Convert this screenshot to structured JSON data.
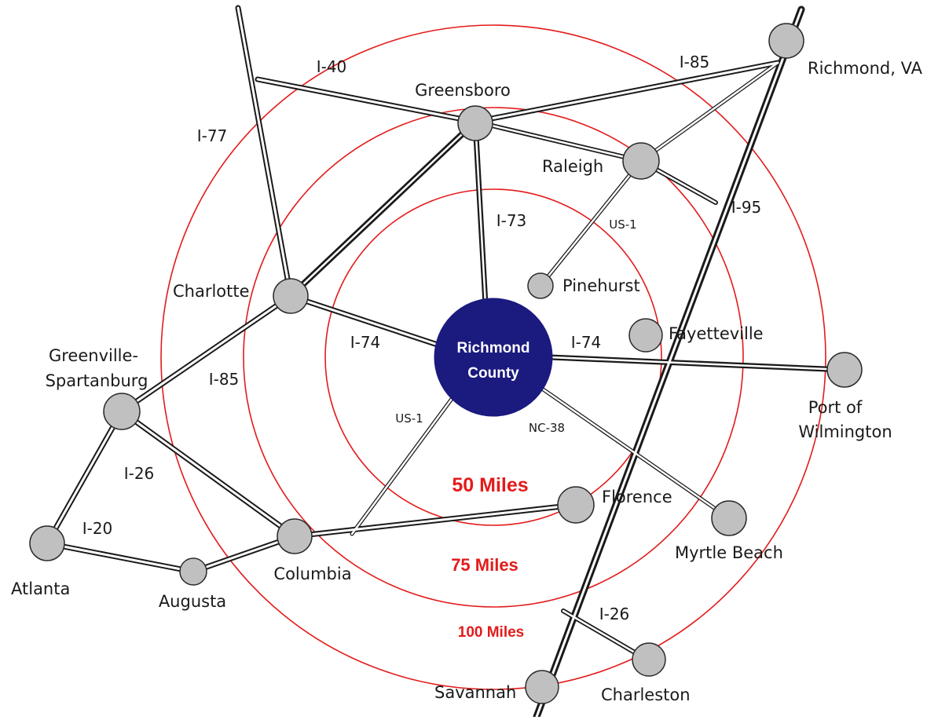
{
  "map": {
    "center": {
      "line1": "Richmond",
      "line2": "County",
      "color": "#1b1a7e"
    },
    "rings": [
      {
        "label": "50 Miles"
      },
      {
        "label": "75 Miles"
      },
      {
        "label": "100 Miles"
      }
    ],
    "ring_color": "#e31b1b",
    "cities": [
      {
        "id": "greensboro",
        "label": "Greensboro"
      },
      {
        "id": "richmond-va",
        "label": "Richmond, VA"
      },
      {
        "id": "raleigh",
        "label": "Raleigh"
      },
      {
        "id": "pinehurst",
        "label": "Pinehurst"
      },
      {
        "id": "fayetteville",
        "label": "Fayetteville"
      },
      {
        "id": "charlotte",
        "label": "Charlotte"
      },
      {
        "id": "greenville-spartanburg",
        "label": "Greenville-",
        "label2": "Spartanburg"
      },
      {
        "id": "port-of-wilmington",
        "label": "Port of",
        "label2": "Wilmington"
      },
      {
        "id": "florence",
        "label": "Florence"
      },
      {
        "id": "myrtle-beach",
        "label": "Myrtle Beach"
      },
      {
        "id": "columbia",
        "label": "Columbia"
      },
      {
        "id": "atlanta",
        "label": "Atlanta"
      },
      {
        "id": "augusta",
        "label": "Augusta"
      },
      {
        "id": "savannah",
        "label": "Savannah"
      },
      {
        "id": "charleston",
        "label": "Charleston"
      }
    ],
    "road_labels": [
      {
        "id": "i40",
        "label": "I-40"
      },
      {
        "id": "i85-north",
        "label": "I-85"
      },
      {
        "id": "i77",
        "label": "I-77"
      },
      {
        "id": "i73",
        "label": "I-73"
      },
      {
        "id": "us1-north",
        "label": "US-1"
      },
      {
        "id": "i95",
        "label": "I-95"
      },
      {
        "id": "i74-west",
        "label": "I-74"
      },
      {
        "id": "i74-east",
        "label": "I-74"
      },
      {
        "id": "i85-west",
        "label": "I-85"
      },
      {
        "id": "us1-south",
        "label": "US-1"
      },
      {
        "id": "nc38",
        "label": "NC-38"
      },
      {
        "id": "i26-west",
        "label": "I-26"
      },
      {
        "id": "i20",
        "label": "I-20"
      },
      {
        "id": "i26-east",
        "label": "I-26"
      }
    ]
  }
}
